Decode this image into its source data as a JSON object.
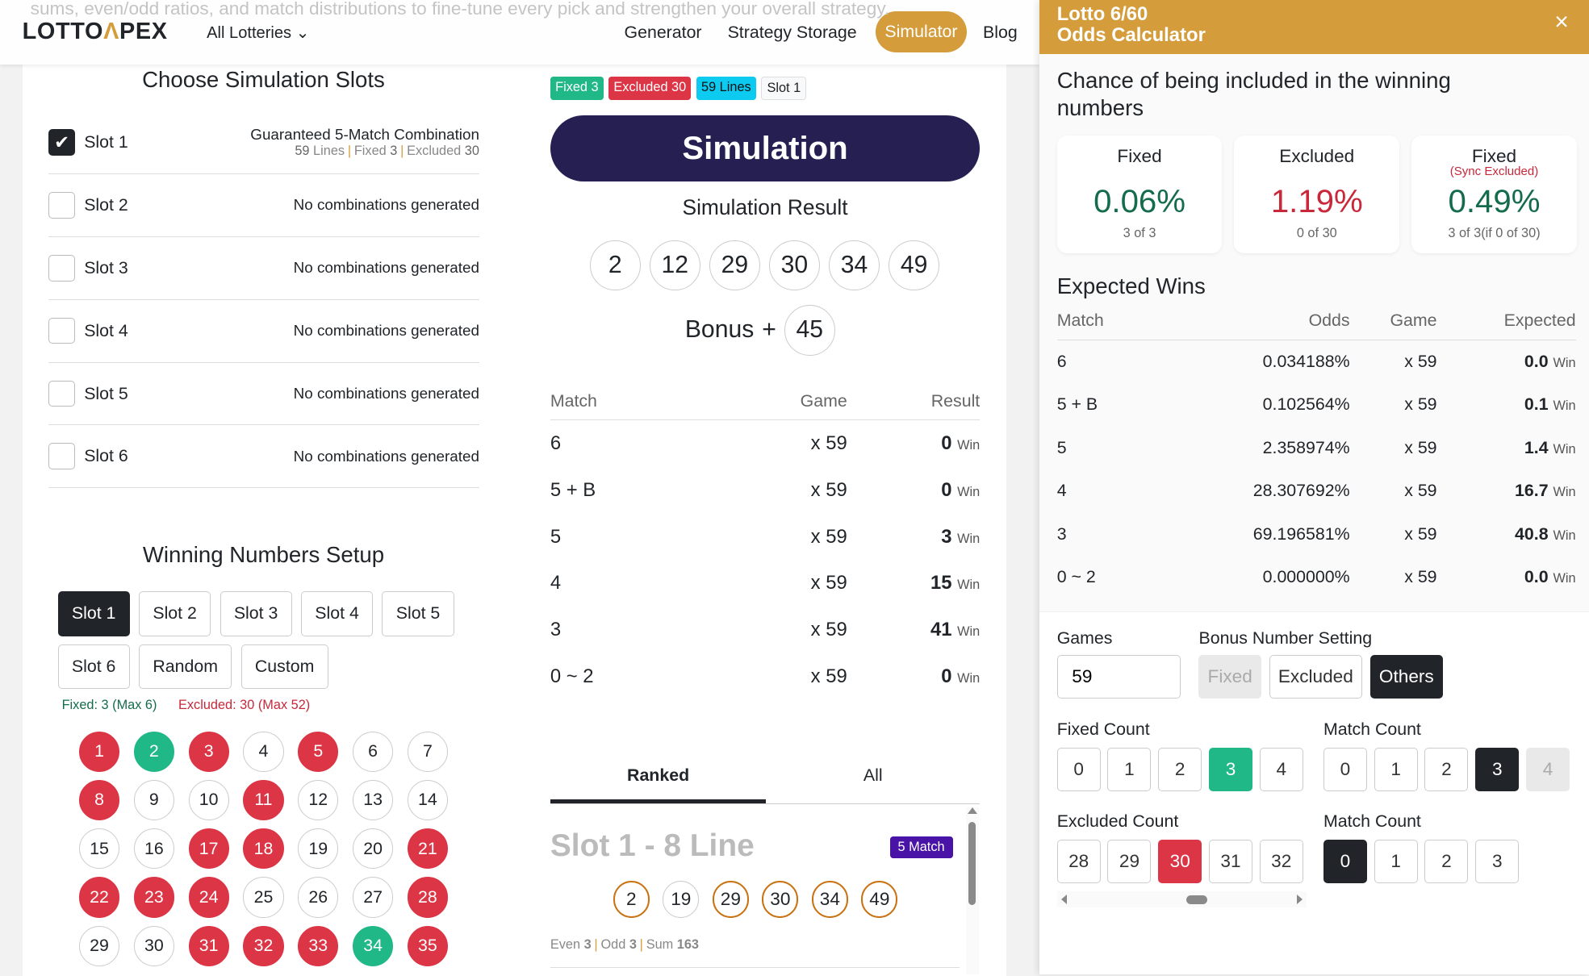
{
  "bg_text": "sums, even/odd ratios, and match distributions to fine-tune every pick and strengthen your overall strategy.",
  "header": {
    "logo": "LOTTO",
    "logo_accent": "Λ",
    "logo_end": "PEX",
    "lotteries": "All Lotteries",
    "nav": [
      "Generator",
      "Strategy Storage",
      "Simulator",
      "Blog"
    ],
    "active": "Simulator",
    "accent": "#d49c3b"
  },
  "slots": {
    "title": "Choose Simulation Slots",
    "items": [
      {
        "name": "Slot 1",
        "checked": true,
        "desc": "Guaranteed 5-Match Combination",
        "lines": "59",
        "lines_label": "Lines",
        "fixed_label": "Fixed",
        "fixed": "3",
        "excluded_label": "Excluded",
        "excluded": "30"
      },
      {
        "name": "Slot 2",
        "checked": false,
        "desc": "No combinations generated"
      },
      {
        "name": "Slot 3",
        "checked": false,
        "desc": "No combinations generated"
      },
      {
        "name": "Slot 4",
        "checked": false,
        "desc": "No combinations generated"
      },
      {
        "name": "Slot 5",
        "checked": false,
        "desc": "No combinations generated"
      },
      {
        "name": "Slot 6",
        "checked": false,
        "desc": "No combinations generated"
      }
    ]
  },
  "setup": {
    "title": "Winning Numbers Setup",
    "buttons": [
      "Slot 1",
      "Slot 2",
      "Slot 3",
      "Slot 4",
      "Slot 5",
      "Slot 6",
      "Random",
      "Custom"
    ],
    "active": "Slot 1",
    "fixed_info": "Fixed: 3 (Max 6)",
    "excluded_info": "Excluded: 30 (Max 52)",
    "fixed_numbers": [
      2,
      34
    ],
    "excluded_numbers": [
      1,
      3,
      5,
      8,
      11,
      17,
      18,
      21,
      22,
      23,
      24,
      28,
      31,
      32,
      33,
      35
    ],
    "visible_numbers": 35
  },
  "badges": [
    {
      "text": "Fixed 3",
      "color": "#20b887"
    },
    {
      "text": "Excluded 30",
      "color": "#dc3545"
    },
    {
      "text": "59 Lines",
      "color": "#0dcaf0"
    },
    {
      "text": "Slot 1",
      "color": "#f8f9fa"
    }
  ],
  "simulation": {
    "button": "Simulation",
    "result_title": "Simulation Result",
    "numbers": [
      "2",
      "12",
      "29",
      "30",
      "34",
      "49"
    ],
    "bonus_label": "Bonus",
    "bonus_plus": "+",
    "bonus": "45",
    "headers": [
      "Match",
      "Game",
      "Result"
    ],
    "win": "Win",
    "rows": [
      {
        "m": "6",
        "g": "x 59",
        "r": "0"
      },
      {
        "m": "5 + B",
        "g": "x 59",
        "r": "0"
      },
      {
        "m": "5",
        "g": "x 59",
        "r": "3"
      },
      {
        "m": "4",
        "g": "x 59",
        "r": "15"
      },
      {
        "m": "3",
        "g": "x 59",
        "r": "41"
      },
      {
        "m": "0 ~ 2",
        "g": "x 59",
        "r": "0"
      }
    ]
  },
  "tabs": [
    "Ranked",
    "All"
  ],
  "active_tab": "Ranked",
  "ranked": {
    "title": "Slot 1 - 8 Line",
    "badge": "5 Match",
    "numbers": [
      {
        "n": "2",
        "hit": true
      },
      {
        "n": "19",
        "hit": false
      },
      {
        "n": "29",
        "hit": true
      },
      {
        "n": "30",
        "hit": true
      },
      {
        "n": "34",
        "hit": true
      },
      {
        "n": "49",
        "hit": true
      }
    ],
    "even_label": "Even",
    "even": "3",
    "odd_label": "Odd",
    "odd": "3",
    "sum_label": "Sum",
    "sum": "163"
  },
  "panel": {
    "title1": "Lotto 6/60",
    "title2": "Odds Calculator",
    "close": "×",
    "chance_title": "Chance of being included in the winning numbers",
    "cards": [
      {
        "label": "Fixed",
        "note": "",
        "pct": "0.06%",
        "sub": "3 of 3",
        "color": "#146c4c"
      },
      {
        "label": "Excluded",
        "note": "",
        "pct": "1.19%",
        "sub": "0 of 30",
        "color": "#c8283a"
      },
      {
        "label": "Fixed",
        "note": "(Sync Excluded)",
        "pct": "0.49%",
        "sub": "3 of 3(if 0 of 30)",
        "color": "#146c4c"
      }
    ],
    "expected_title": "Expected Wins",
    "headers": [
      "Match",
      "Odds",
      "Game",
      "Expected"
    ],
    "win": "Win",
    "rows": [
      {
        "m": "6",
        "o": "0.034188%",
        "g": "x 59",
        "e": "0.0"
      },
      {
        "m": "5 + B",
        "o": "0.102564%",
        "g": "x 59",
        "e": "0.1"
      },
      {
        "m": "5",
        "o": "2.358974%",
        "g": "x 59",
        "e": "1.4"
      },
      {
        "m": "4",
        "o": "28.307692%",
        "g": "x 59",
        "e": "16.7"
      },
      {
        "m": "3",
        "o": "69.196581%",
        "g": "x 59",
        "e": "40.8"
      },
      {
        "m": "0 ~ 2",
        "o": "0.000000%",
        "g": "x 59",
        "e": "0.0"
      }
    ],
    "games_label": "Games",
    "games": "59",
    "bonus_label": "Bonus Number Setting",
    "bonus_options": [
      "Fixed",
      "Excluded",
      "Others"
    ],
    "bonus_active": "Others",
    "fixed_count_label": "Fixed Count",
    "fixed_count": [
      "0",
      "1",
      "2",
      "3",
      "4"
    ],
    "fixed_count_active": "3",
    "match_count_label": "Match Count",
    "match_count": [
      "0",
      "1",
      "2",
      "3",
      "4"
    ],
    "match_count_active": "3",
    "excluded_count_label": "Excluded Count",
    "excluded_count": [
      "28",
      "29",
      "30",
      "31",
      "32"
    ],
    "excluded_count_active": "30",
    "match_count2_label": "Match Count",
    "match_count2": [
      "0",
      "1",
      "2",
      "3"
    ],
    "match_count2_active": "0"
  }
}
